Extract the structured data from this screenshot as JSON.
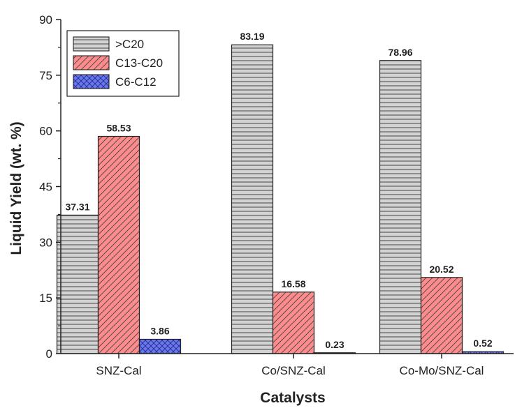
{
  "chart_data": {
    "type": "bar",
    "categories": [
      "SNZ-Cal",
      "Co/SNZ-Cal",
      "Co-Mo/SNZ-Cal"
    ],
    "series": [
      {
        "name": ">C20",
        "values": [
          37.31,
          83.19,
          78.96
        ],
        "labels": [
          "37.31",
          "83.19",
          "78.96"
        ],
        "color": "#d3d3d3",
        "pattern": "horizontal-lines"
      },
      {
        "name": "C13-C20",
        "values": [
          58.53,
          16.58,
          20.52
        ],
        "labels": [
          "58.53",
          "16.58",
          "20.52"
        ],
        "color": "#ff8c8c",
        "pattern": "diagonal-lines"
      },
      {
        "name": "C6-C12",
        "values": [
          3.86,
          0.23,
          0.52
        ],
        "labels": [
          "3.86",
          "0.23",
          "0.52"
        ],
        "color": "#6b78e6",
        "pattern": "crosshatch"
      }
    ],
    "xlabel": "Catalysts",
    "ylabel": "Liquid Yield (wt. %)",
    "ylim": [
      0,
      90
    ],
    "yticks": [
      0,
      15,
      30,
      45,
      60,
      75,
      90
    ],
    "grid": false,
    "legend_position": "top-left"
  }
}
